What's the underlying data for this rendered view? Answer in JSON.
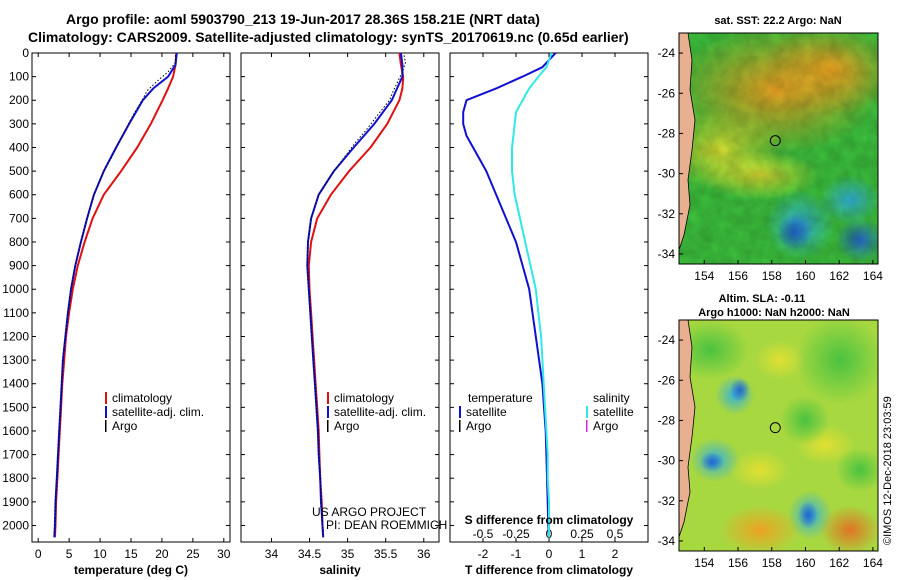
{
  "header": {
    "title_line1": "Argo profile: aoml 5903790_213 19-Jun-2017 28.36S 158.21E (NRT data)",
    "title_line2": "Climatology: CARS2009. Satellite-adjusted climatology: synTS_20170619.nc (0.65d earlier)"
  },
  "colors": {
    "climatology": "#e01010",
    "satellite": "#1010d0",
    "argo": "#000000",
    "salinity_satellite": "#30e8e8",
    "salinity_argo": "#e020e0"
  },
  "credits": {
    "line1": "US ARGO PROJECT",
    "line2": "PI: DEAN ROEMMICH"
  },
  "side_stamp": "©IMOS 12-Dec-2018 23:03:59",
  "depth_ticks": [
    "0",
    "100",
    "200",
    "300",
    "400",
    "500",
    "600",
    "700",
    "800",
    "900",
    "1000",
    "1100",
    "1200",
    "1300",
    "1400",
    "1500",
    "1600",
    "1700",
    "1800",
    "1900",
    "2000"
  ],
  "chart_data": [
    {
      "type": "line",
      "xlabel": "temperature (deg C)",
      "xlim": [
        -1,
        31
      ],
      "ylim": [
        2070,
        0
      ],
      "xticks": [
        "0",
        "5",
        "10",
        "15",
        "20",
        "25",
        "30"
      ],
      "legend": [
        "climatology",
        "satellite-adj. clim.",
        "Argo"
      ],
      "series": [
        {
          "name": "climatology",
          "color_key": "climatology",
          "depth": [
            0,
            50,
            100,
            150,
            200,
            300,
            400,
            500,
            600,
            700,
            800,
            900,
            1000,
            1100,
            1200,
            1300,
            1400,
            1500,
            1600,
            1700,
            1800,
            1900,
            2000,
            2050
          ],
          "values": [
            22.3,
            22.2,
            21.8,
            21.0,
            20.1,
            18.2,
            16.0,
            13.4,
            10.6,
            8.8,
            7.5,
            6.4,
            5.6,
            5.0,
            4.5,
            4.2,
            3.9,
            3.7,
            3.5,
            3.3,
            3.1,
            2.9,
            2.8,
            2.7
          ]
        },
        {
          "name": "satellite-adj. clim.",
          "color_key": "satellite",
          "depth": [
            0,
            50,
            100,
            150,
            200,
            300,
            400,
            500,
            600,
            700,
            800,
            900,
            1000,
            1100,
            1200,
            1300,
            1400,
            1500,
            1600,
            1700,
            1800,
            1900,
            2000,
            2050
          ],
          "values": [
            22.4,
            22.2,
            21.0,
            18.6,
            16.9,
            14.7,
            12.6,
            10.6,
            9.0,
            7.9,
            6.9,
            6.0,
            5.3,
            4.8,
            4.4,
            4.0,
            3.8,
            3.6,
            3.4,
            3.2,
            3.0,
            2.8,
            2.7,
            2.6
          ]
        },
        {
          "name": "Argo",
          "color_key": "argo",
          "depth": [
            10,
            40,
            80,
            120,
            160,
            200,
            260,
            320,
            380,
            440,
            500,
            600,
            700,
            800,
            900,
            1000,
            1100,
            1200,
            1300,
            1400,
            1500,
            1600,
            1700,
            1800,
            1900,
            2000,
            2040
          ],
          "values": [
            22.2,
            22.2,
            21.0,
            19.2,
            17.6,
            16.8,
            15.4,
            14.2,
            13.0,
            11.9,
            10.6,
            9.0,
            7.9,
            6.9,
            6.0,
            5.3,
            4.8,
            4.4,
            4.0,
            3.8,
            3.6,
            3.4,
            3.2,
            3.0,
            2.8,
            2.7,
            2.6
          ]
        }
      ]
    },
    {
      "type": "line",
      "xlabel": "salinity",
      "xlim": [
        33.6,
        36.2
      ],
      "ylim": [
        2070,
        0
      ],
      "xticks": [
        "34",
        "34.5",
        "35",
        "35.5",
        "36"
      ],
      "legend": [
        "climatology",
        "satellite-adj. clim.",
        "Argo"
      ],
      "series": [
        {
          "name": "climatology",
          "color_key": "climatology",
          "depth": [
            0,
            50,
            100,
            150,
            200,
            300,
            400,
            500,
            600,
            700,
            800,
            900,
            1000,
            1100,
            1200,
            1300,
            1400,
            1500,
            1600,
            1700,
            1800,
            1900,
            2000,
            2050
          ],
          "values": [
            35.68,
            35.7,
            35.73,
            35.72,
            35.68,
            35.52,
            35.3,
            35.02,
            34.78,
            34.6,
            34.52,
            34.49,
            34.5,
            34.52,
            34.54,
            34.56,
            34.58,
            34.6,
            34.62,
            34.63,
            34.64,
            34.66,
            34.67,
            34.68
          ]
        },
        {
          "name": "satellite-adj. clim.",
          "color_key": "satellite",
          "depth": [
            0,
            50,
            100,
            150,
            200,
            300,
            400,
            500,
            600,
            700,
            800,
            900,
            1000,
            1100,
            1200,
            1300,
            1400,
            1500,
            1600,
            1700,
            1800,
            1900,
            2000,
            2050
          ],
          "values": [
            35.7,
            35.72,
            35.72,
            35.65,
            35.58,
            35.35,
            35.08,
            34.82,
            34.62,
            34.52,
            34.48,
            34.47,
            34.49,
            34.51,
            34.53,
            34.55,
            34.57,
            34.59,
            34.61,
            34.62,
            34.64,
            34.65,
            34.67,
            34.68
          ]
        },
        {
          "name": "Argo",
          "color_key": "argo",
          "depth": [
            10,
            40,
            80,
            120,
            160,
            200,
            260,
            320,
            380,
            440,
            500,
            600,
            700,
            800,
            900,
            1000,
            1100,
            1200,
            1300,
            1400,
            1500,
            1600,
            1700,
            1800,
            1900,
            2000,
            2040
          ],
          "values": [
            35.74,
            35.76,
            35.72,
            35.66,
            35.6,
            35.55,
            35.4,
            35.26,
            35.1,
            34.96,
            34.82,
            34.62,
            34.52,
            34.48,
            34.47,
            34.49,
            34.51,
            34.53,
            34.55,
            34.57,
            34.59,
            34.61,
            34.62,
            34.64,
            34.65,
            34.67,
            34.68
          ]
        }
      ]
    },
    {
      "type": "line",
      "xlabel": "T difference from climatology",
      "xlabel2": "S difference from climatology",
      "xlim": [
        -3,
        3
      ],
      "ylim": [
        2070,
        0
      ],
      "xticks": [
        "-2",
        "-1",
        "0",
        "1",
        "2"
      ],
      "xticks2": [
        "-0.5",
        "-0.25",
        "0",
        "0.25",
        "0.5"
      ],
      "legend_left": {
        "title": "temperature",
        "items": [
          "satellite",
          "Argo"
        ]
      },
      "legend_right": {
        "title": "salinity",
        "items": [
          "satellite",
          "Argo"
        ]
      },
      "series": [
        {
          "name": "satellite",
          "group": "temperature",
          "color_key": "satellite",
          "depth": [
            0,
            30,
            60,
            100,
            150,
            200,
            250,
            300,
            350,
            400,
            450,
            500,
            600,
            700,
            800,
            900,
            1000,
            1100,
            1200,
            1300,
            1400,
            1500,
            1600,
            1700,
            1800,
            1900,
            2000,
            2050
          ],
          "values": [
            0.2,
            0.0,
            -0.2,
            -0.8,
            -1.6,
            -2.5,
            -2.6,
            -2.6,
            -2.5,
            -2.3,
            -2.1,
            -1.9,
            -1.6,
            -1.3,
            -1.0,
            -0.8,
            -0.6,
            -0.5,
            -0.4,
            -0.3,
            -0.2,
            -0.15,
            -0.1,
            -0.08,
            -0.06,
            -0.04,
            -0.02,
            0.0
          ]
        },
        {
          "name": "satellite",
          "group": "salinity",
          "color_key": "salinity_satellite",
          "depth": [
            0,
            30,
            60,
            100,
            150,
            200,
            250,
            300,
            350,
            400,
            450,
            500,
            600,
            700,
            800,
            900,
            1000,
            1100,
            1200,
            1300,
            1400,
            1500,
            1600,
            1700,
            1800,
            1900,
            2000,
            2050
          ],
          "values": [
            0.02,
            0.0,
            -0.02,
            -0.08,
            -0.15,
            -0.2,
            -0.25,
            -0.26,
            -0.27,
            -0.28,
            -0.28,
            -0.28,
            -0.26,
            -0.22,
            -0.18,
            -0.14,
            -0.1,
            -0.08,
            -0.06,
            -0.05,
            -0.04,
            -0.03,
            -0.02,
            -0.01,
            -0.01,
            0.0,
            0.0,
            0.0
          ]
        }
      ]
    }
  ],
  "maps": [
    {
      "title_line1": "sat. SST: 22.2 Argo: NaN",
      "title_line2": "",
      "lon_ticks": [
        "154",
        "156",
        "158",
        "160",
        "162",
        "164"
      ],
      "lat_ticks": [
        "-24",
        "-26",
        "-28",
        "-30",
        "-32",
        "-34"
      ],
      "lon_range": [
        152.5,
        164.3
      ],
      "lat_range": [
        -23,
        -34.5
      ],
      "profile_lon": 158.21,
      "profile_lat": -28.36
    },
    {
      "title_line1": "Altim. SLA: -0.11",
      "title_line2": "Argo h1000: NaN h2000: NaN",
      "lon_ticks": [
        "154",
        "156",
        "158",
        "160",
        "162",
        "164"
      ],
      "lat_ticks": [
        "-24",
        "-26",
        "-28",
        "-30",
        "-32",
        "-34"
      ],
      "lon_range": [
        152.5,
        164.3
      ],
      "lat_range": [
        -23,
        -34.5
      ],
      "profile_lon": 158.21,
      "profile_lat": -28.36
    }
  ]
}
